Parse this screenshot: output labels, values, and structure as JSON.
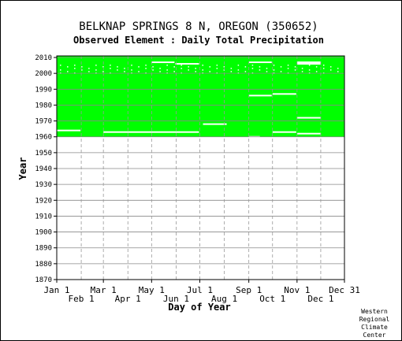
{
  "chart_data": {
    "type": "heatmap",
    "title": "BELKNAP SPRINGS 8 N, OREGON   (350652)",
    "subtitle": "Observed Element : Daily Total Precipitation",
    "xlabel": "Day of Year",
    "ylabel": "Year",
    "ylim": [
      1870,
      2011
    ],
    "yticks": [
      1870,
      1880,
      1890,
      1900,
      1910,
      1920,
      1930,
      1940,
      1950,
      1960,
      1970,
      1980,
      1990,
      2000,
      2010
    ],
    "xticks_upper": [
      "Jan 1",
      "Mar 1",
      "May 1",
      "Jul 1",
      "Sep 1",
      "Nov 1",
      "Dec 31"
    ],
    "xticks_lower": [
      "Feb 1",
      "Apr 1",
      "Jun 1",
      "Aug 1",
      "Oct 1",
      "Dec 1"
    ],
    "grid": true,
    "data_color": "#00ff00",
    "coverage": {
      "year_start": 1960,
      "year_end": 2011
    },
    "missing_segments": [
      {
        "year": 1964,
        "day_start": 1,
        "day_end": 31
      },
      {
        "year": 1963,
        "day_start": 60,
        "day_end": 181
      },
      {
        "year": 1968,
        "day_start": 186,
        "day_end": 216
      },
      {
        "year": 1960,
        "day_start": 244,
        "day_end": 258
      },
      {
        "year": 1963,
        "day_start": 274,
        "day_end": 304
      },
      {
        "year": 1972,
        "day_start": 305,
        "day_end": 335
      },
      {
        "year": 1962,
        "day_start": 305,
        "day_end": 335
      },
      {
        "year": 1986,
        "day_start": 244,
        "day_end": 273
      },
      {
        "year": 1987,
        "day_start": 274,
        "day_end": 304
      },
      {
        "year": 2007,
        "day_start": 121,
        "day_end": 150
      },
      {
        "year": 2006,
        "day_start": 151,
        "day_end": 181
      },
      {
        "year": 2007,
        "day_start": 244,
        "day_end": 273
      },
      {
        "year": 2007,
        "day_start": 305,
        "day_end": 335
      },
      {
        "year": 2006,
        "day_start": 305,
        "day_end": 335
      }
    ]
  },
  "credit": [
    "Western",
    "Regional",
    "Climate",
    "Center"
  ]
}
